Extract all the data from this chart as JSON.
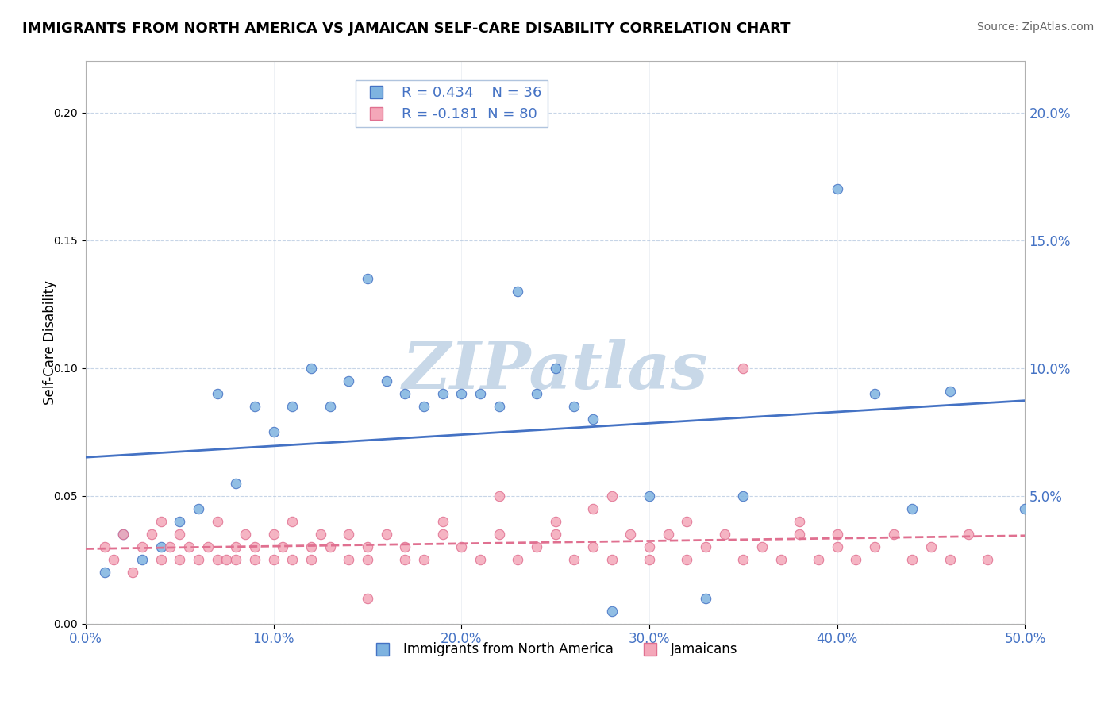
{
  "title": "IMMIGRANTS FROM NORTH AMERICA VS JAMAICAN SELF-CARE DISABILITY CORRELATION CHART",
  "source_text": "Source: ZipAtlas.com",
  "xlabel": "",
  "ylabel": "Self-Care Disability",
  "xlim": [
    0.0,
    0.5
  ],
  "ylim": [
    0.0,
    0.22
  ],
  "xticks": [
    0.0,
    0.1,
    0.2,
    0.3,
    0.4,
    0.5
  ],
  "yticks_right": [
    0.0,
    0.05,
    0.1,
    0.15,
    0.2
  ],
  "blue_R": 0.434,
  "blue_N": 36,
  "pink_R": -0.181,
  "pink_N": 80,
  "blue_color": "#7EB3E0",
  "pink_color": "#F4A7B9",
  "blue_line_color": "#4472C4",
  "pink_line_color": "#E07090",
  "watermark": "ZIPatlas",
  "watermark_color": "#C8D8E8",
  "legend_label_blue": "Immigrants from North America",
  "legend_label_pink": "Jamaicans",
  "background_color": "#FFFFFF",
  "blue_scatter_x": [
    0.02,
    0.03,
    0.01,
    0.04,
    0.05,
    0.06,
    0.08,
    0.07,
    0.09,
    0.1,
    0.12,
    0.13,
    0.11,
    0.15,
    0.16,
    0.14,
    0.18,
    0.17,
    0.19,
    0.2,
    0.22,
    0.21,
    0.24,
    0.25,
    0.23,
    0.27,
    0.26,
    0.3,
    0.28,
    0.33,
    0.35,
    0.4,
    0.42,
    0.44,
    0.46,
    0.5
  ],
  "blue_scatter_y": [
    0.035,
    0.025,
    0.02,
    0.03,
    0.04,
    0.045,
    0.055,
    0.09,
    0.085,
    0.075,
    0.1,
    0.085,
    0.085,
    0.135,
    0.095,
    0.095,
    0.085,
    0.09,
    0.09,
    0.09,
    0.085,
    0.09,
    0.09,
    0.1,
    0.13,
    0.08,
    0.085,
    0.05,
    0.005,
    0.01,
    0.05,
    0.17,
    0.09,
    0.045,
    0.091,
    0.045
  ],
  "pink_scatter_x": [
    0.01,
    0.015,
    0.02,
    0.025,
    0.03,
    0.035,
    0.04,
    0.04,
    0.045,
    0.05,
    0.05,
    0.055,
    0.06,
    0.065,
    0.07,
    0.07,
    0.075,
    0.08,
    0.08,
    0.085,
    0.09,
    0.09,
    0.1,
    0.1,
    0.105,
    0.11,
    0.11,
    0.12,
    0.12,
    0.125,
    0.13,
    0.14,
    0.14,
    0.15,
    0.15,
    0.16,
    0.17,
    0.17,
    0.18,
    0.19,
    0.2,
    0.21,
    0.22,
    0.23,
    0.24,
    0.25,
    0.26,
    0.27,
    0.28,
    0.29,
    0.3,
    0.3,
    0.31,
    0.32,
    0.33,
    0.34,
    0.35,
    0.36,
    0.37,
    0.38,
    0.39,
    0.4,
    0.4,
    0.41,
    0.42,
    0.43,
    0.44,
    0.45,
    0.46,
    0.47,
    0.32,
    0.28,
    0.22,
    0.19,
    0.38,
    0.27,
    0.25,
    0.35,
    0.15,
    0.48
  ],
  "pink_scatter_y": [
    0.03,
    0.025,
    0.035,
    0.02,
    0.03,
    0.035,
    0.04,
    0.025,
    0.03,
    0.035,
    0.025,
    0.03,
    0.025,
    0.03,
    0.025,
    0.04,
    0.025,
    0.03,
    0.025,
    0.035,
    0.025,
    0.03,
    0.035,
    0.025,
    0.03,
    0.04,
    0.025,
    0.03,
    0.025,
    0.035,
    0.03,
    0.025,
    0.035,
    0.025,
    0.03,
    0.035,
    0.025,
    0.03,
    0.025,
    0.035,
    0.03,
    0.025,
    0.035,
    0.025,
    0.03,
    0.035,
    0.025,
    0.03,
    0.025,
    0.035,
    0.025,
    0.03,
    0.035,
    0.025,
    0.03,
    0.035,
    0.025,
    0.03,
    0.025,
    0.035,
    0.025,
    0.03,
    0.035,
    0.025,
    0.03,
    0.035,
    0.025,
    0.03,
    0.025,
    0.035,
    0.04,
    0.05,
    0.05,
    0.04,
    0.04,
    0.045,
    0.04,
    0.1,
    0.01,
    0.025
  ]
}
